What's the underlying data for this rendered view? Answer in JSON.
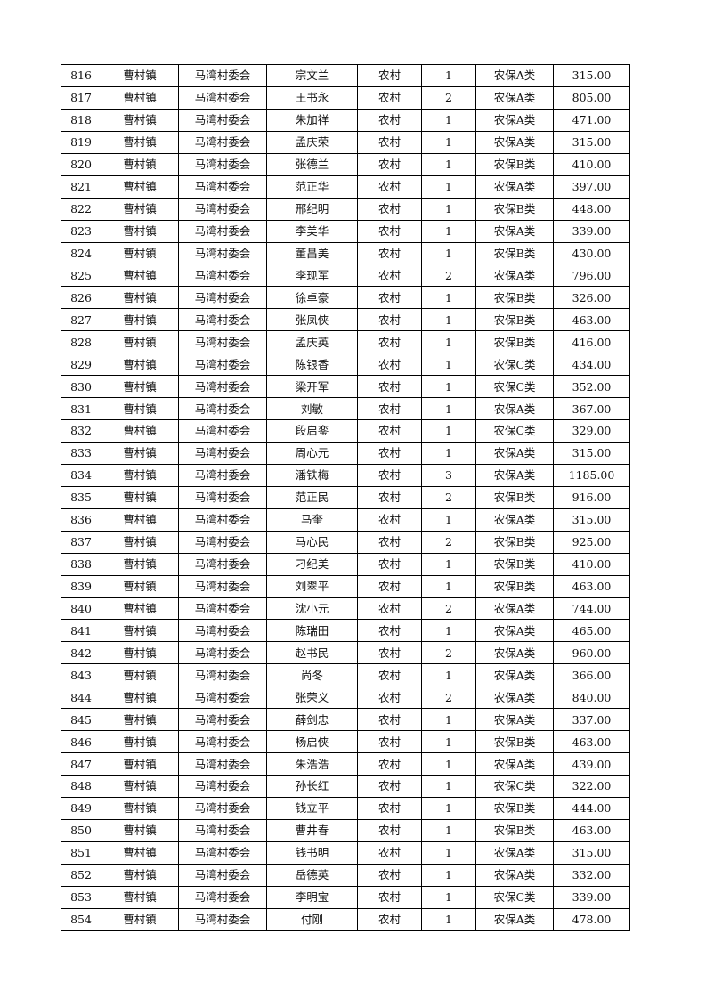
{
  "rows": [
    [
      "816",
      "曹村镇",
      "马湾村委会",
      "宗文兰",
      "农村",
      "1",
      "农保A类",
      "315.00"
    ],
    [
      "817",
      "曹村镇",
      "马湾村委会",
      "王书永",
      "农村",
      "2",
      "农保A类",
      "805.00"
    ],
    [
      "818",
      "曹村镇",
      "马湾村委会",
      "朱加祥",
      "农村",
      "1",
      "农保A类",
      "471.00"
    ],
    [
      "819",
      "曹村镇",
      "马湾村委会",
      "孟庆荣",
      "农村",
      "1",
      "农保A类",
      "315.00"
    ],
    [
      "820",
      "曹村镇",
      "马湾村委会",
      "张德兰",
      "农村",
      "1",
      "农保B类",
      "410.00"
    ],
    [
      "821",
      "曹村镇",
      "马湾村委会",
      "范正华",
      "农村",
      "1",
      "农保A类",
      "397.00"
    ],
    [
      "822",
      "曹村镇",
      "马湾村委会",
      "邢纪明",
      "农村",
      "1",
      "农保B类",
      "448.00"
    ],
    [
      "823",
      "曹村镇",
      "马湾村委会",
      "李美华",
      "农村",
      "1",
      "农保A类",
      "339.00"
    ],
    [
      "824",
      "曹村镇",
      "马湾村委会",
      "董昌美",
      "农村",
      "1",
      "农保B类",
      "430.00"
    ],
    [
      "825",
      "曹村镇",
      "马湾村委会",
      "李现军",
      "农村",
      "2",
      "农保A类",
      "796.00"
    ],
    [
      "826",
      "曹村镇",
      "马湾村委会",
      "徐卓豪",
      "农村",
      "1",
      "农保B类",
      "326.00"
    ],
    [
      "827",
      "曹村镇",
      "马湾村委会",
      "张凤侠",
      "农村",
      "1",
      "农保B类",
      "463.00"
    ],
    [
      "828",
      "曹村镇",
      "马湾村委会",
      "孟庆英",
      "农村",
      "1",
      "农保B类",
      "416.00"
    ],
    [
      "829",
      "曹村镇",
      "马湾村委会",
      "陈银香",
      "农村",
      "1",
      "农保C类",
      "434.00"
    ],
    [
      "830",
      "曹村镇",
      "马湾村委会",
      "梁开军",
      "农村",
      "1",
      "农保C类",
      "352.00"
    ],
    [
      "831",
      "曹村镇",
      "马湾村委会",
      "刘敏",
      "农村",
      "1",
      "农保A类",
      "367.00"
    ],
    [
      "832",
      "曹村镇",
      "马湾村委会",
      "段启銮",
      "农村",
      "1",
      "农保C类",
      "329.00"
    ],
    [
      "833",
      "曹村镇",
      "马湾村委会",
      "周心元",
      "农村",
      "1",
      "农保A类",
      "315.00"
    ],
    [
      "834",
      "曹村镇",
      "马湾村委会",
      "潘铁梅",
      "农村",
      "3",
      "农保A类",
      "1185.00"
    ],
    [
      "835",
      "曹村镇",
      "马湾村委会",
      "范正民",
      "农村",
      "2",
      "农保B类",
      "916.00"
    ],
    [
      "836",
      "曹村镇",
      "马湾村委会",
      "马奎",
      "农村",
      "1",
      "农保A类",
      "315.00"
    ],
    [
      "837",
      "曹村镇",
      "马湾村委会",
      "马心民",
      "农村",
      "2",
      "农保B类",
      "925.00"
    ],
    [
      "838",
      "曹村镇",
      "马湾村委会",
      "刁纪美",
      "农村",
      "1",
      "农保B类",
      "410.00"
    ],
    [
      "839",
      "曹村镇",
      "马湾村委会",
      "刘翠平",
      "农村",
      "1",
      "农保B类",
      "463.00"
    ],
    [
      "840",
      "曹村镇",
      "马湾村委会",
      "沈小元",
      "农村",
      "2",
      "农保A类",
      "744.00"
    ],
    [
      "841",
      "曹村镇",
      "马湾村委会",
      "陈瑞田",
      "农村",
      "1",
      "农保A类",
      "465.00"
    ],
    [
      "842",
      "曹村镇",
      "马湾村委会",
      "赵书民",
      "农村",
      "2",
      "农保A类",
      "960.00"
    ],
    [
      "843",
      "曹村镇",
      "马湾村委会",
      "尚冬",
      "农村",
      "1",
      "农保A类",
      "366.00"
    ],
    [
      "844",
      "曹村镇",
      "马湾村委会",
      "张荣义",
      "农村",
      "2",
      "农保A类",
      "840.00"
    ],
    [
      "845",
      "曹村镇",
      "马湾村委会",
      "薛剑忠",
      "农村",
      "1",
      "农保A类",
      "337.00"
    ],
    [
      "846",
      "曹村镇",
      "马湾村委会",
      "杨启侠",
      "农村",
      "1",
      "农保B类",
      "463.00"
    ],
    [
      "847",
      "曹村镇",
      "马湾村委会",
      "朱浩浩",
      "农村",
      "1",
      "农保A类",
      "439.00"
    ],
    [
      "848",
      "曹村镇",
      "马湾村委会",
      "孙长红",
      "农村",
      "1",
      "农保C类",
      "322.00"
    ],
    [
      "849",
      "曹村镇",
      "马湾村委会",
      "钱立平",
      "农村",
      "1",
      "农保B类",
      "444.00"
    ],
    [
      "850",
      "曹村镇",
      "马湾村委会",
      "曹井春",
      "农村",
      "1",
      "农保B类",
      "463.00"
    ],
    [
      "851",
      "曹村镇",
      "马湾村委会",
      "钱书明",
      "农村",
      "1",
      "农保A类",
      "315.00"
    ],
    [
      "852",
      "曹村镇",
      "马湾村委会",
      "岳德英",
      "农村",
      "1",
      "农保A类",
      "332.00"
    ],
    [
      "853",
      "曹村镇",
      "马湾村委会",
      "李明宝",
      "农村",
      "1",
      "农保C类",
      "339.00"
    ],
    [
      "854",
      "曹村镇",
      "马湾村委会",
      "付刚",
      "农村",
      "1",
      "农保A类",
      "478.00"
    ]
  ]
}
